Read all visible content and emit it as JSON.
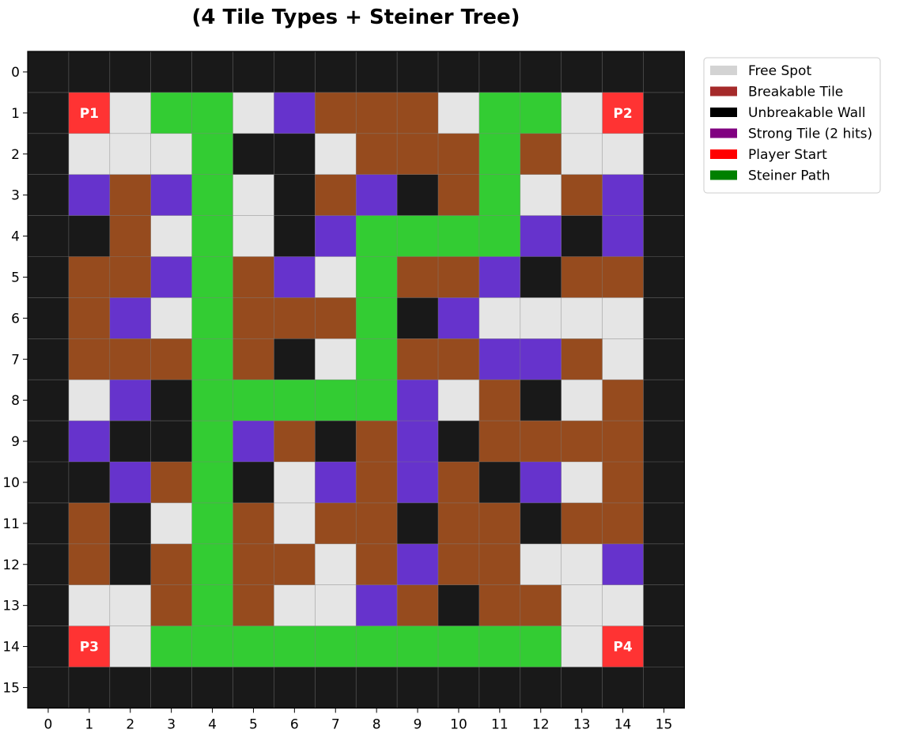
{
  "chart_data": {
    "type": "heatmap",
    "title_lines": [
      "(4 Tile Types + Steiner Tree)"
    ],
    "x_ticks": [
      0,
      1,
      2,
      3,
      4,
      5,
      6,
      7,
      8,
      9,
      10,
      11,
      12,
      13,
      14,
      15
    ],
    "y_ticks": [
      0,
      1,
      2,
      3,
      4,
      5,
      6,
      7,
      8,
      9,
      10,
      11,
      12,
      13,
      14,
      15
    ],
    "grid_size": 16,
    "legend_position": "upper-right outside",
    "legend": [
      {
        "key": "F",
        "label": "Free Spot",
        "color": "#d3d3d3"
      },
      {
        "key": "B",
        "label": "Breakable Tile",
        "color": "#a52a2a"
      },
      {
        "key": "W",
        "label": "Unbreakable Wall",
        "color": "#000000"
      },
      {
        "key": "S",
        "label": "Strong Tile (2 hits)",
        "color": "#800080"
      },
      {
        "key": "P",
        "label": "Player Start",
        "color": "#ff0000"
      },
      {
        "key": "G",
        "label": "Steiner Path",
        "color": "#008000"
      }
    ],
    "cell_colors": {
      "F": "#e5e5e5",
      "B": "#964b1e",
      "W": "#191919",
      "S": "#6633cc",
      "P": "#ff3333",
      "G": "#33cc33"
    },
    "grid": [
      "WWWWWWWWWWWWWWWW",
      "WPFGGFSBBBFGGFPW",
      "WFFFGWWFBBBGBFFW",
      "WSBSGFWBSWBGFBSW",
      "WWBFGFWSGGGGSWSW",
      "WBBSGBSFGBBSWBBW",
      "WBSFGBBBGWSFFFFW",
      "WBBBGBWFGBBSSBFW",
      "WFSWGGGGGSFBWFBW",
      "WSWWGSBWBSWBBBBW",
      "WWSBGWFSBSBWSFBW",
      "WBWFGBFBBWBBWBBW",
      "WBWBGBBFBSBBFFSW",
      "WFFBGBFFSBWBBFFW",
      "WPFGGGGGGGGGGFPW",
      "WWWWWWWWWWWWWWWW"
    ],
    "cell_labels": [
      {
        "row": 1,
        "col": 1,
        "text": "P1"
      },
      {
        "row": 1,
        "col": 14,
        "text": "P2"
      },
      {
        "row": 14,
        "col": 1,
        "text": "P3"
      },
      {
        "row": 14,
        "col": 14,
        "text": "P4"
      }
    ]
  }
}
